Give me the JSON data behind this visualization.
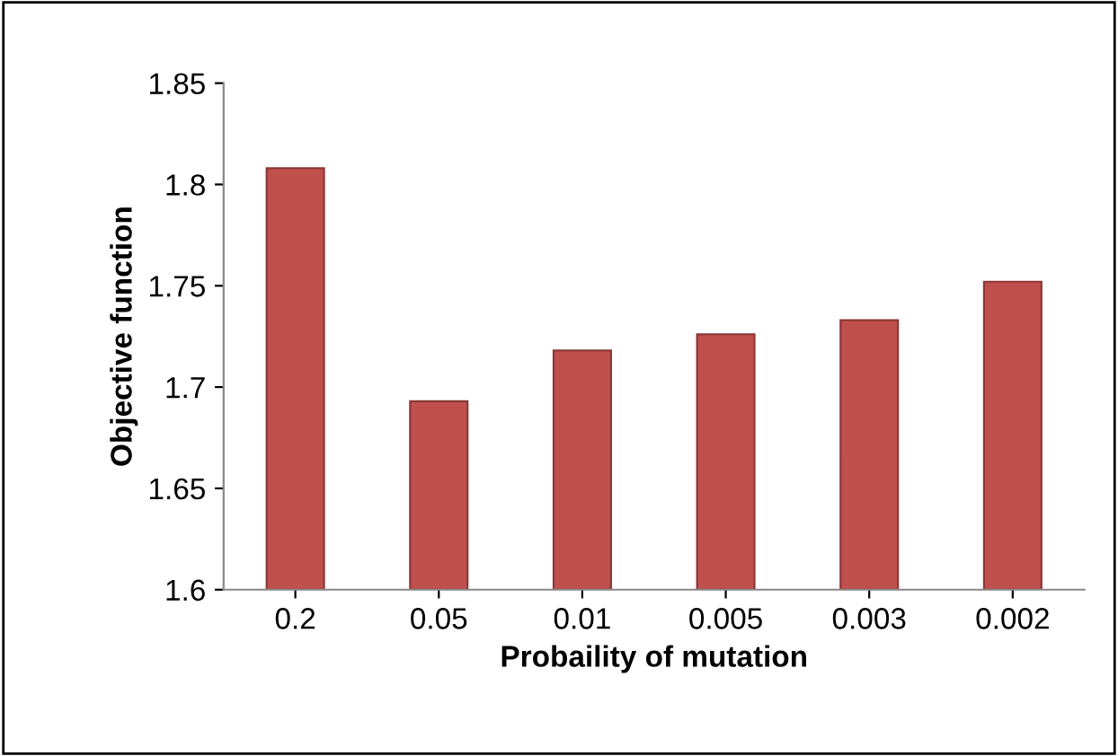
{
  "chart_data": {
    "type": "bar",
    "xlabel": "Probaility of mutation",
    "ylabel": "Objective function",
    "categories": [
      "0.2",
      "0.05",
      "0.01",
      "0.005",
      "0.003",
      "0.002"
    ],
    "values": [
      1.808,
      1.693,
      1.718,
      1.726,
      1.733,
      1.752
    ],
    "color": "#c0504d",
    "ylim": [
      1.6,
      1.85
    ],
    "yticks": [
      1.6,
      1.65,
      1.7,
      1.75,
      1.8,
      1.85
    ],
    "grid": false,
    "legend": false
  }
}
